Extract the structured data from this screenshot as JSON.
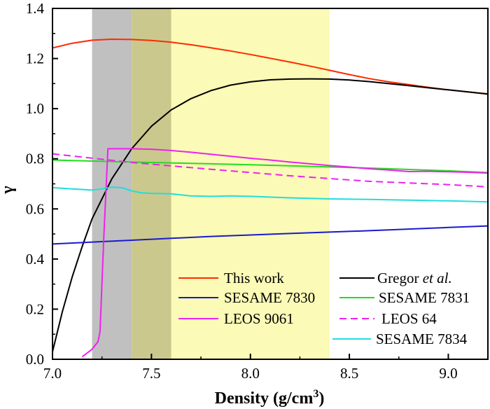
{
  "chart_data": {
    "type": "line",
    "xlabel": "Density (g/cm",
    "xlabel_sup": "3",
    "xlabel_close": ")",
    "ylabel": "γ",
    "xlim": [
      7.0,
      9.2
    ],
    "ylim": [
      0.0,
      1.4
    ],
    "xticks": [
      "7.0",
      "7.5",
      "8.0",
      "8.5",
      "9.0"
    ],
    "yticks": [
      "0.0",
      "0.2",
      "0.4",
      "0.6",
      "0.8",
      "1.0",
      "1.2",
      "1.4"
    ],
    "grid": false,
    "legend_placement": "bottom-right",
    "shaded_regions": [
      {
        "x": [
          7.2,
          7.4
        ],
        "color": "#c0c0c0"
      },
      {
        "x": [
          7.4,
          7.6
        ],
        "color": "#cbc88d"
      },
      {
        "x": [
          7.6,
          8.4
        ],
        "color": "#fbfab6"
      }
    ],
    "series": [
      {
        "name": "This work",
        "color": "#ff2a00",
        "dash": false,
        "x": [
          7.0,
          7.1,
          7.2,
          7.3,
          7.4,
          7.5,
          7.6,
          7.7,
          7.8,
          7.9,
          8.0,
          8.1,
          8.2,
          8.3,
          8.4,
          8.5,
          8.6,
          8.7,
          8.8,
          8.9,
          9.0,
          9.1,
          9.2
        ],
        "y": [
          1.242,
          1.261,
          1.273,
          1.277,
          1.276,
          1.272,
          1.265,
          1.255,
          1.243,
          1.23,
          1.216,
          1.201,
          1.186,
          1.17,
          1.153,
          1.136,
          1.12,
          1.107,
          1.096,
          1.085,
          1.075,
          1.067,
          1.059
        ]
      },
      {
        "name": "Gregor et al.",
        "name_plain": "Gregor ",
        "name_italic": "et al.",
        "color": "#000000",
        "dash": false,
        "x": [
          7.0,
          7.05,
          7.1,
          7.15,
          7.2,
          7.3,
          7.4,
          7.5,
          7.6,
          7.7,
          7.8,
          7.9,
          8.0,
          8.1,
          8.2,
          8.3,
          8.4,
          8.5,
          8.6,
          8.7,
          8.8,
          8.9,
          9.0,
          9.1,
          9.2
        ],
        "y": [
          0.03,
          0.19,
          0.33,
          0.45,
          0.56,
          0.72,
          0.84,
          0.93,
          0.995,
          1.04,
          1.072,
          1.094,
          1.107,
          1.115,
          1.118,
          1.119,
          1.118,
          1.114,
          1.108,
          1.1,
          1.092,
          1.083,
          1.075,
          1.067,
          1.058
        ]
      },
      {
        "name": "SESAME 7830",
        "color": "#1a1acc",
        "dash": false,
        "x": [
          7.0,
          7.4,
          7.8,
          8.2,
          8.6,
          9.0,
          9.2
        ],
        "y": [
          0.46,
          0.475,
          0.49,
          0.502,
          0.513,
          0.526,
          0.532
        ]
      },
      {
        "name": "SESAME 7831",
        "color": "#22dd22",
        "dash": false,
        "x": [
          7.0,
          7.4,
          7.8,
          8.2,
          8.6,
          9.0,
          9.2
        ],
        "y": [
          0.795,
          0.787,
          0.78,
          0.772,
          0.763,
          0.752,
          0.745
        ]
      },
      {
        "name": "LEOS 9061",
        "color": "#ee22ee",
        "dash": false,
        "x": [
          7.15,
          7.2,
          7.23,
          7.24,
          7.26,
          7.28,
          7.28,
          7.4,
          7.5,
          7.6,
          7.7,
          7.8,
          7.9,
          8.0,
          8.1,
          8.2,
          8.3,
          8.4,
          8.5,
          8.6,
          8.7,
          8.8,
          8.9,
          9.0,
          9.1,
          9.2
        ],
        "y": [
          0.01,
          0.04,
          0.07,
          0.11,
          0.5,
          0.84,
          0.84,
          0.84,
          0.838,
          0.833,
          0.826,
          0.818,
          0.81,
          0.802,
          0.795,
          0.787,
          0.78,
          0.773,
          0.767,
          0.76,
          0.755,
          0.749,
          0.75,
          0.748,
          0.746,
          0.743
        ]
      },
      {
        "name": "LEOS 64",
        "color": "#ee22ee",
        "dash": true,
        "x": [
          7.0,
          7.4,
          7.8,
          8.2,
          8.6,
          9.0,
          9.2
        ],
        "y": [
          0.82,
          0.785,
          0.758,
          0.732,
          0.71,
          0.697,
          0.688
        ]
      },
      {
        "name": "SESAME 7834",
        "color": "#22dddd",
        "dash": false,
        "x": [
          7.0,
          7.1,
          7.2,
          7.25,
          7.3,
          7.35,
          7.4,
          7.45,
          7.5,
          7.6,
          7.7,
          7.8,
          7.9,
          8.0,
          8.2,
          8.4,
          8.6,
          8.8,
          9.0,
          9.2
        ],
        "y": [
          0.685,
          0.68,
          0.675,
          0.68,
          0.687,
          0.685,
          0.672,
          0.664,
          0.662,
          0.66,
          0.652,
          0.65,
          0.652,
          0.65,
          0.644,
          0.64,
          0.638,
          0.635,
          0.632,
          0.628
        ]
      }
    ]
  }
}
